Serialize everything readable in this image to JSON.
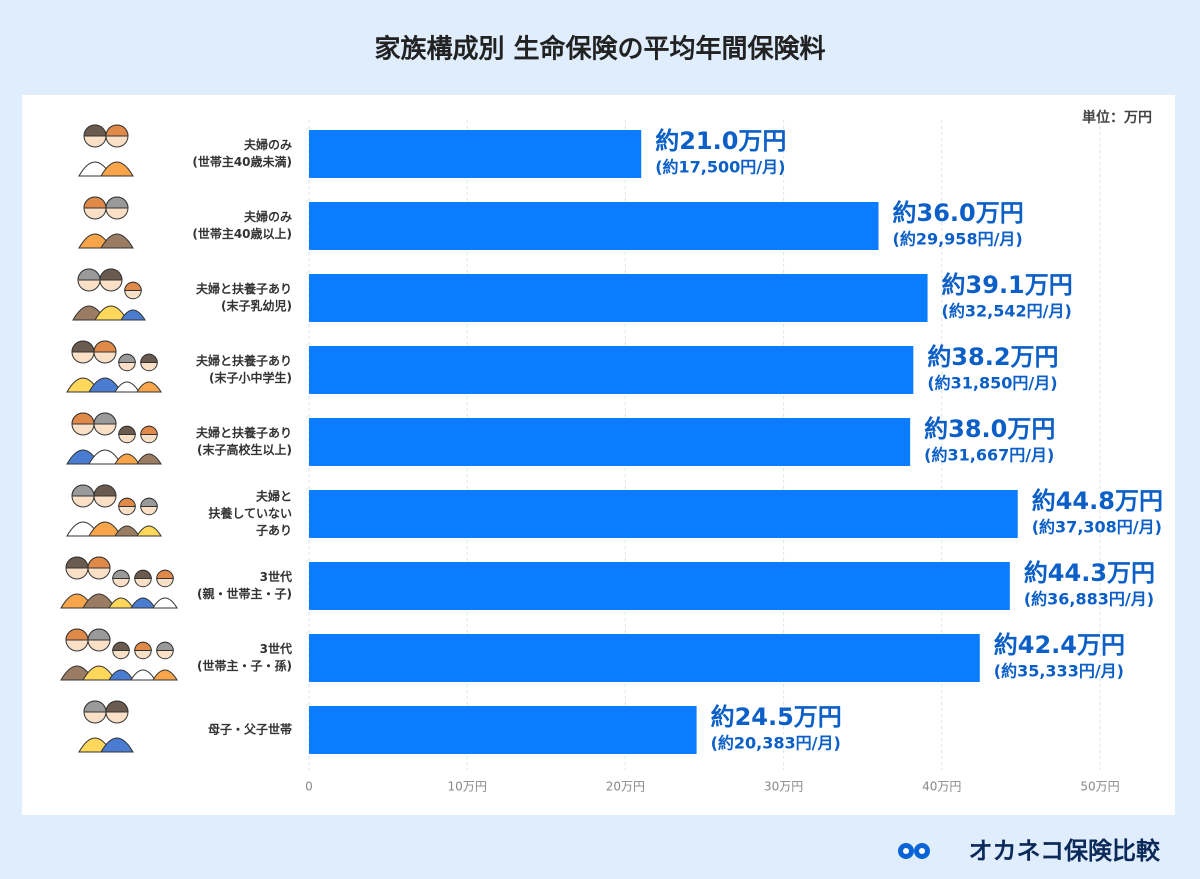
{
  "chart_data": {
    "type": "bar",
    "orientation": "horizontal",
    "title": "家族構成別 生命保険の平均年間保険料",
    "unit_label": "単位：万円",
    "brand": "オカネコ保険比較",
    "categories": [
      "夫婦のみ\n(世帯主40歳未満)",
      "夫婦のみ\n(世帯主40歳以上)",
      "夫婦と扶養子あり\n(末子乳幼児)",
      "夫婦と扶養子あり\n(末子小中学生)",
      "夫婦と扶養子あり\n(末子高校生以上)",
      "夫婦と\n扶養していない\n子あり",
      "3世代\n(親・世帯主・子)",
      "3世代\n(世帯主・子・孫)",
      "母子・父子世帯"
    ],
    "values": [
      21.0,
      36.0,
      39.1,
      38.2,
      38.0,
      44.8,
      44.3,
      42.4,
      24.5
    ],
    "value_labels": [
      "約21.0万円",
      "約36.0万円",
      "約39.1万円",
      "約38.2万円",
      "約38.0万円",
      "約44.8万円",
      "約44.3万円",
      "約42.4万円",
      "約24.5万円"
    ],
    "monthly_labels": [
      "(約17,500円/月)",
      "(約29,958円/月)",
      "(約32,542円/月)",
      "(約31,850円/月)",
      "(約31,667円/月)",
      "(約37,308円/月)",
      "(約36,883円/月)",
      "(約35,333円/月)",
      "(約20,383円/月)"
    ],
    "color": "#0a7cff",
    "xlim": [
      0,
      50
    ],
    "xticks": [
      0,
      {
        "value": 10,
        "label": "10万円"
      },
      {
        "value": 20,
        "label": "20万円"
      },
      {
        "value": 30,
        "label": "30万円"
      },
      {
        "value": 40,
        "label": "40万円"
      },
      {
        "value": 50,
        "label": "50万円"
      }
    ],
    "grid": true
  }
}
